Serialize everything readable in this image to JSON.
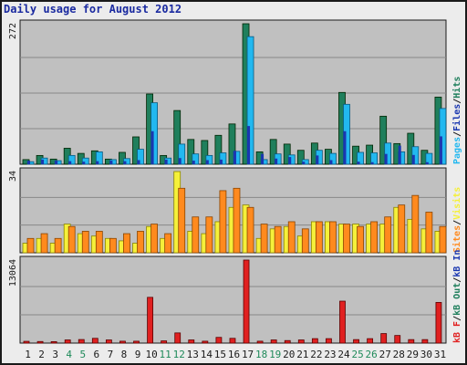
{
  "title": "Daily usage for August 2012",
  "colors": {
    "hits": "#1f7f5c",
    "files": "#1a37b0",
    "pages": "#22b8f0",
    "visits": "#f5f03a",
    "sites": "#ff8a1e",
    "kbin": "#1a37b0",
    "kbout": "#1f7f5c",
    "kbf": "#e02020",
    "weekend_day": "#1f8a5a",
    "weekday": "#1a1a1a",
    "plot_bg": "#c0c0c0"
  },
  "chart_data": [
    {
      "type": "bar",
      "name": "hits-files-pages",
      "y_max_label": "272",
      "ymax": 272,
      "legend": [
        "Pages",
        "/",
        "Files",
        "/",
        "Hits"
      ],
      "categories": [
        "1",
        "2",
        "3",
        "4",
        "5",
        "6",
        "7",
        "8",
        "9",
        "10",
        "11",
        "12",
        "13",
        "14",
        "15",
        "16",
        "17",
        "18",
        "19",
        "20",
        "21",
        "22",
        "23",
        "24",
        "25",
        "26",
        "27",
        "28",
        "29",
        "30",
        "31"
      ],
      "series": [
        {
          "name": "Hits",
          "values": [
            9,
            17,
            10,
            31,
            21,
            26,
            10,
            23,
            53,
            136,
            17,
            104,
            48,
            46,
            56,
            78,
            272,
            24,
            48,
            39,
            27,
            41,
            29,
            139,
            35,
            37,
            93,
            40,
            60,
            27,
            130
          ]
        },
        {
          "name": "Files",
          "values": [
            7,
            9,
            7,
            6,
            5,
            6,
            7,
            6,
            8,
            64,
            9,
            12,
            7,
            8,
            9,
            26,
            74,
            20,
            11,
            14,
            5,
            17,
            8,
            64,
            5,
            4,
            20,
            36,
            18,
            4,
            54
          ]
        },
        {
          "name": "Pages",
          "values": [
            5,
            12,
            7,
            17,
            12,
            24,
            9,
            11,
            29,
            119,
            12,
            39,
            20,
            17,
            22,
            25,
            247,
            9,
            20,
            18,
            9,
            27,
            21,
            116,
            23,
            22,
            41,
            24,
            34,
            21,
            108
          ]
        }
      ]
    },
    {
      "type": "bar",
      "name": "visits-sites",
      "y_max_label": "34",
      "ymax": 34,
      "legend": [
        "Sites",
        "/",
        "Visits"
      ],
      "categories": [
        "1",
        "2",
        "3",
        "4",
        "5",
        "6",
        "7",
        "8",
        "9",
        "10",
        "11",
        "12",
        "13",
        "14",
        "15",
        "16",
        "17",
        "18",
        "19",
        "20",
        "21",
        "22",
        "23",
        "24",
        "25",
        "26",
        "27",
        "28",
        "29",
        "30",
        "31"
      ],
      "series": [
        {
          "name": "Visits",
          "values": [
            4,
            6,
            4,
            12,
            8,
            7,
            6,
            5,
            4,
            11,
            6,
            34,
            9,
            8,
            13,
            19,
            20,
            6,
            10,
            11,
            7,
            13,
            13,
            12,
            12,
            12,
            12,
            19,
            14,
            10,
            9
          ]
        },
        {
          "name": "Sites",
          "values": [
            6,
            8,
            6,
            11,
            9,
            9,
            6,
            8,
            9,
            12,
            8,
            27,
            15,
            15,
            26,
            27,
            19,
            12,
            11,
            13,
            10,
            13,
            13,
            12,
            11,
            13,
            15,
            20,
            24,
            17,
            11
          ]
        }
      ]
    },
    {
      "type": "bar",
      "name": "kbytes",
      "y_max_label": "13064",
      "ymax": 13064,
      "legend": [
        "kB F",
        "/",
        "kB Out",
        "/",
        "kB In"
      ],
      "categories": [
        "1",
        "2",
        "3",
        "4",
        "5",
        "6",
        "7",
        "8",
        "9",
        "10",
        "11",
        "12",
        "13",
        "14",
        "15",
        "16",
        "17",
        "18",
        "19",
        "20",
        "21",
        "22",
        "23",
        "24",
        "25",
        "26",
        "27",
        "28",
        "29",
        "30",
        "31"
      ],
      "series": [
        {
          "name": "kB F",
          "values": [
            280,
            250,
            230,
            500,
            560,
            750,
            500,
            300,
            300,
            7200,
            350,
            1600,
            500,
            300,
            900,
            750,
            13064,
            300,
            500,
            400,
            500,
            700,
            700,
            6600,
            550,
            700,
            1500,
            1200,
            550,
            550,
            6400
          ]
        }
      ]
    }
  ]
}
